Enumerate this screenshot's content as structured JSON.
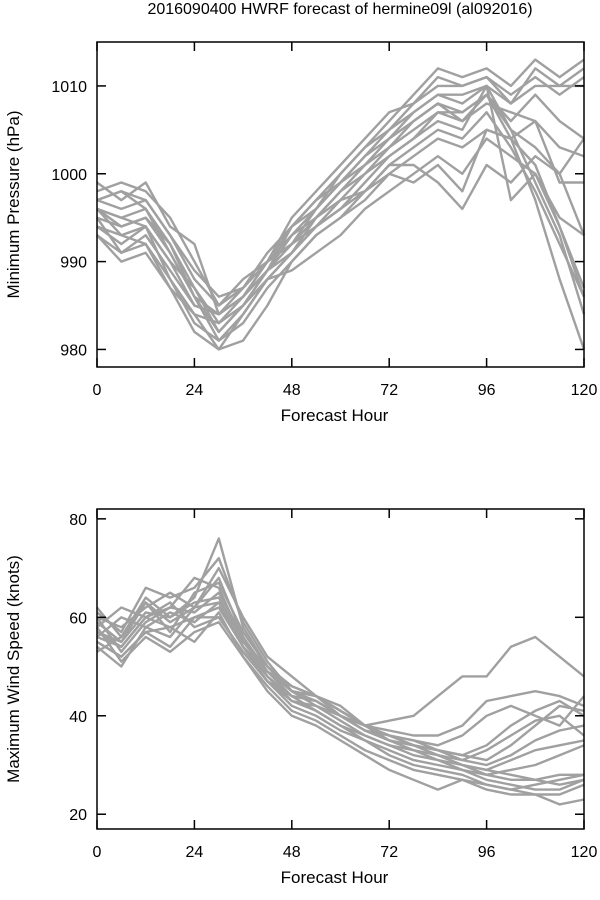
{
  "title": "2016090400 HWRF forecast of hermine09l (al092016)",
  "colors": {
    "series": "#a0a0a0",
    "axis": "#000000"
  },
  "chart_data": [
    {
      "type": "line",
      "ylabel": "Minimum Pressure (hPa)",
      "xlabel": "Forecast Hour",
      "xlim": [
        0,
        120
      ],
      "ylim": [
        978,
        1015
      ],
      "xticks": [
        0,
        24,
        48,
        72,
        96,
        120
      ],
      "yticks": [
        980,
        990,
        1000,
        1010
      ],
      "x": [
        0,
        6,
        12,
        18,
        24,
        30,
        36,
        42,
        48,
        54,
        60,
        66,
        72,
        78,
        84,
        90,
        96,
        102,
        108,
        114,
        120
      ],
      "series": [
        {
          "values": [
            999,
            997,
            999,
            994,
            992,
            984,
            986,
            989,
            994,
            997,
            1000,
            1003,
            1006,
            1009,
            1012,
            1011,
            1012,
            1010,
            1013,
            1011,
            1013
          ]
        },
        {
          "values": [
            998,
            999,
            998,
            995,
            990,
            985,
            988,
            990,
            995,
            998,
            1001,
            1004,
            1007,
            1008,
            1011,
            1010,
            1011,
            1008,
            1012,
            1010,
            1012
          ]
        },
        {
          "values": [
            997,
            998,
            997,
            993,
            989,
            986,
            987,
            991,
            994,
            996,
            1000,
            1003,
            1005,
            1008,
            1010,
            1010,
            1011,
            1009,
            1011,
            1009,
            1011
          ]
        },
        {
          "values": [
            996,
            995,
            996,
            992,
            987,
            982,
            985,
            989,
            992,
            996,
            999,
            1002,
            1005,
            1007,
            1009,
            1008,
            1010,
            1008,
            1010,
            1010,
            1010
          ]
        },
        {
          "values": [
            995,
            994,
            995,
            991,
            986,
            981,
            984,
            988,
            991,
            995,
            998,
            1001,
            1004,
            1006,
            1008,
            1007,
            1009,
            1006,
            1009,
            1006,
            1004
          ]
        },
        {
          "values": [
            996,
            993,
            994,
            990,
            987,
            983,
            986,
            990,
            993,
            996,
            999,
            1001,
            1003,
            1006,
            1008,
            1006,
            1008,
            1007,
            1006,
            999,
            999
          ]
        },
        {
          "values": [
            995,
            991,
            993,
            989,
            985,
            984,
            987,
            990,
            992,
            995,
            997,
            1000,
            1002,
            1004,
            1007,
            1006,
            1009,
            1005,
            1003,
            1000,
            993
          ]
        },
        {
          "values": [
            994,
            992,
            994,
            988,
            984,
            980,
            984,
            988,
            991,
            994,
            996,
            999,
            1002,
            1004,
            1006,
            1005,
            1010,
            997,
            1000,
            994,
            987
          ]
        },
        {
          "values": [
            993,
            990,
            991,
            987,
            982,
            980,
            981,
            985,
            990,
            993,
            995,
            998,
            1001,
            1003,
            1005,
            1004,
            1007,
            1003,
            998,
            992,
            986
          ]
        },
        {
          "values": [
            997,
            996,
            997,
            993,
            988,
            985,
            987,
            990,
            994,
            997,
            999,
            1002,
            1004,
            1007,
            1009,
            1009,
            1010,
            1005,
            999,
            993,
            984
          ]
        },
        {
          "values": [
            996,
            994,
            995,
            992,
            986,
            982,
            985,
            989,
            993,
            995,
            998,
            1000,
            1003,
            1005,
            1007,
            1007,
            1009,
            1004,
            997,
            988,
            980
          ]
        },
        {
          "values": [
            994,
            993,
            992,
            988,
            983,
            981,
            983,
            987,
            990,
            993,
            995,
            997,
            1000,
            1002,
            1004,
            1003,
            1005,
            1004,
            1001,
            994,
            986
          ]
        },
        {
          "values": [
            993,
            991,
            992,
            987,
            984,
            983,
            985,
            988,
            989,
            991,
            993,
            996,
            998,
            1000,
            1002,
            1000,
            1004,
            1002,
            1000,
            995,
            993
          ]
        },
        {
          "values": [
            996,
            995,
            994,
            990,
            985,
            984,
            986,
            989,
            991,
            994,
            996,
            998,
            1001,
            1001,
            999,
            996,
            1001,
            999,
            1002,
            1000,
            1004
          ]
        },
        {
          "values": [
            997,
            998,
            996,
            991,
            986,
            984,
            986,
            990,
            992,
            994,
            997,
            998,
            1000,
            999,
            1001,
            998,
            1005,
            1004,
            1006,
            1003,
            1002
          ]
        }
      ]
    },
    {
      "type": "line",
      "ylabel": "Maximum Wind Speed (knots)",
      "xlabel": "Forecast Hour",
      "xlim": [
        0,
        120
      ],
      "ylim": [
        17,
        82
      ],
      "xticks": [
        0,
        24,
        48,
        72,
        96,
        120
      ],
      "yticks": [
        20,
        40,
        60,
        80
      ],
      "x": [
        0,
        6,
        12,
        18,
        24,
        30,
        36,
        42,
        48,
        54,
        60,
        66,
        72,
        78,
        84,
        90,
        96,
        102,
        108,
        114,
        120
      ],
      "series": [
        {
          "values": [
            62,
            56,
            64,
            60,
            64,
            76,
            58,
            50,
            46,
            44,
            40,
            38,
            39,
            40,
            44,
            48,
            48,
            54,
            56,
            52,
            48
          ]
        },
        {
          "values": [
            60,
            58,
            62,
            65,
            62,
            70,
            60,
            52,
            48,
            44,
            42,
            38,
            37,
            36,
            36,
            38,
            43,
            44,
            45,
            44,
            42
          ]
        },
        {
          "values": [
            58,
            62,
            60,
            62,
            68,
            66,
            55,
            50,
            45,
            42,
            40,
            38,
            36,
            35,
            34,
            36,
            40,
            42,
            40,
            38,
            44
          ]
        },
        {
          "values": [
            56,
            60,
            58,
            56,
            62,
            68,
            56,
            48,
            44,
            43,
            40,
            37,
            36,
            34,
            33,
            32,
            34,
            38,
            41,
            43,
            40
          ]
        },
        {
          "values": [
            55,
            52,
            57,
            58,
            60,
            62,
            54,
            49,
            45,
            44,
            41,
            38,
            35,
            34,
            32,
            31,
            33,
            36,
            39,
            40,
            36
          ]
        },
        {
          "values": [
            57,
            54,
            60,
            63,
            58,
            60,
            53,
            47,
            44,
            43,
            40,
            37,
            35,
            34,
            33,
            32,
            31,
            34,
            38,
            42,
            41
          ]
        },
        {
          "values": [
            59,
            55,
            61,
            60,
            63,
            64,
            55,
            49,
            46,
            44,
            41,
            38,
            36,
            35,
            33,
            31,
            30,
            32,
            35,
            37,
            38
          ]
        },
        {
          "values": [
            53,
            56,
            63,
            57,
            65,
            67,
            57,
            50,
            45,
            43,
            40,
            37,
            35,
            33,
            32,
            30,
            29,
            31,
            33,
            34,
            35
          ]
        },
        {
          "values": [
            54,
            50,
            58,
            61,
            59,
            63,
            54,
            48,
            43,
            42,
            39,
            36,
            34,
            33,
            31,
            30,
            28,
            29,
            30,
            32,
            34
          ]
        },
        {
          "values": [
            61,
            57,
            66,
            64,
            66,
            72,
            59,
            51,
            45,
            44,
            41,
            38,
            36,
            34,
            32,
            30,
            29,
            28,
            27,
            28,
            28
          ]
        },
        {
          "values": [
            60,
            53,
            59,
            62,
            61,
            65,
            56,
            49,
            44,
            41,
            38,
            35,
            33,
            31,
            30,
            29,
            28,
            27,
            27,
            26,
            27
          ]
        },
        {
          "values": [
            57,
            55,
            63,
            59,
            62,
            63,
            54,
            47,
            43,
            41,
            38,
            36,
            34,
            32,
            31,
            29,
            27,
            26,
            25,
            25,
            27
          ]
        },
        {
          "values": [
            55,
            52,
            57,
            54,
            60,
            60,
            53,
            47,
            42,
            40,
            37,
            35,
            32,
            30,
            29,
            28,
            26,
            25,
            24,
            24,
            26
          ]
        },
        {
          "values": [
            58,
            51,
            56,
            53,
            57,
            59,
            52,
            46,
            41,
            39,
            36,
            33,
            31,
            29,
            28,
            27,
            25,
            24,
            24,
            22,
            23
          ]
        },
        {
          "values": [
            56,
            54,
            60,
            58,
            55,
            61,
            52,
            45,
            40,
            38,
            35,
            32,
            29,
            27,
            25,
            27,
            26,
            25,
            26,
            27,
            28
          ]
        }
      ]
    }
  ]
}
